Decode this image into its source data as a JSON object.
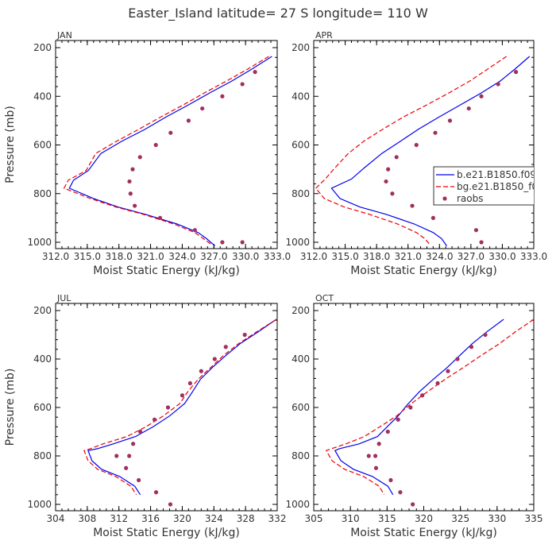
{
  "figure_title": "Easter_Island  latitude= 27 S longitude= 110 W",
  "colors": {
    "model1": "#0000ee",
    "model2": "#ee0000",
    "raobs": "#a03060"
  },
  "chart_data": [
    {
      "type": "line",
      "panel": "JAN",
      "xlabel": "Moist Static Energy (kJ/kg)",
      "ylabel": "Pressure (mb)",
      "xlim": [
        312.0,
        333.0
      ],
      "ylim": [
        1000,
        200
      ],
      "xticks": [
        312.0,
        315.0,
        318.0,
        321.0,
        324.0,
        327.0,
        330.0,
        333.0
      ],
      "xtick_labels": [
        "312.0",
        "315.0",
        "318.0",
        "321.0",
        "324.0",
        "327.0",
        "330.0",
        "333.0"
      ],
      "yticks": [
        200,
        400,
        600,
        800,
        1000
      ],
      "ytick_labels": [
        "200",
        "400",
        "600",
        "800",
        "1000"
      ],
      "series": [
        {
          "key": "model1",
          "style": "solid",
          "x": [
            332.5,
            330.6,
            328.7,
            326.6,
            324.6,
            322.5,
            320.5,
            318.3,
            316.3,
            315.1,
            313.7,
            313.3,
            315.6,
            317.9,
            320.5,
            323.5,
            325.5,
            326.3,
            327.1
          ],
          "y": [
            236,
            288,
            337,
            386,
            435,
            484,
            535,
            584,
            635,
            705,
            745,
            778,
            820,
            855,
            885,
            925,
            960,
            985,
            1015
          ]
        },
        {
          "key": "model2",
          "style": "dashed",
          "x": [
            332.2,
            330.2,
            328.2,
            326.1,
            324.1,
            322.0,
            319.9,
            317.8,
            315.8,
            314.9,
            313.2,
            312.8,
            315.3,
            317.7,
            320.3,
            323.2,
            325.2,
            326.0,
            326.8
          ],
          "y": [
            236,
            288,
            337,
            386,
            435,
            484,
            535,
            584,
            635,
            705,
            745,
            778,
            820,
            855,
            885,
            925,
            960,
            985,
            1010
          ]
        },
        {
          "key": "raobs",
          "style": "dots",
          "x": [
            330.9,
            329.7,
            327.8,
            325.9,
            324.6,
            322.9,
            321.5,
            320.0,
            319.3,
            319.0,
            319.1,
            319.5,
            321.9,
            325.2,
            327.8,
            329.7
          ],
          "y": [
            300,
            350,
            400,
            450,
            500,
            550,
            600,
            650,
            700,
            750,
            800,
            850,
            900,
            950,
            1000,
            1000
          ]
        }
      ],
      "legend": []
    },
    {
      "type": "line",
      "panel": "APR",
      "xlabel": "Moist Static Energy (kJ/kg)",
      "ylabel": "",
      "xlim": [
        312.0,
        333.0
      ],
      "ylim": [
        1000,
        200
      ],
      "xticks": [
        312.0,
        315.0,
        318.0,
        321.0,
        324.0,
        327.0,
        330.0,
        333.0
      ],
      "xtick_labels": [
        "312.0",
        "315.0",
        "318.0",
        "321.0",
        "324.0",
        "327.0",
        "330.0",
        "333.0"
      ],
      "yticks": [
        200,
        400,
        600,
        800,
        1000
      ],
      "ytick_labels": [
        "200",
        "400",
        "600",
        "800",
        "1000"
      ],
      "series": [
        {
          "key": "model1",
          "style": "solid",
          "x": [
            332.6,
            331.2,
            329.8,
            328.0,
            326.0,
            324.0,
            322.0,
            320.3,
            318.5,
            316.8,
            315.6,
            313.7,
            314.5,
            316.4,
            318.9,
            321.6,
            323.4,
            324.2,
            324.7
          ],
          "y": [
            236,
            288,
            337,
            386,
            435,
            484,
            535,
            584,
            635,
            695,
            740,
            778,
            820,
            855,
            885,
            925,
            960,
            985,
            1015
          ]
        },
        {
          "key": "model2",
          "style": "dashed",
          "x": [
            330.4,
            328.6,
            326.9,
            324.9,
            322.8,
            320.6,
            318.6,
            316.8,
            315.3,
            314.0,
            313.1,
            312.2,
            313.0,
            314.9,
            317.3,
            320.0,
            321.8,
            322.6,
            323.1
          ],
          "y": [
            236,
            288,
            337,
            386,
            435,
            484,
            535,
            584,
            635,
            695,
            740,
            778,
            820,
            855,
            885,
            925,
            960,
            985,
            1010
          ]
        },
        {
          "key": "raobs",
          "style": "dots",
          "x": [
            331.3,
            329.6,
            328.0,
            326.8,
            325.0,
            323.6,
            321.8,
            319.9,
            319.1,
            318.9,
            319.5,
            321.4,
            323.4,
            327.5,
            328.0
          ],
          "y": [
            300,
            350,
            400,
            450,
            500,
            550,
            600,
            650,
            700,
            750,
            800,
            850,
            900,
            950,
            1000
          ]
        }
      ],
      "legend": [
        {
          "key": "model1",
          "style": "solid",
          "label": "b.e21.B1850.f09"
        },
        {
          "key": "model2",
          "style": "dashed",
          "label": "bg.e21.B1850_f0"
        },
        {
          "key": "raobs",
          "style": "dots",
          "label": "raobs"
        }
      ]
    },
    {
      "type": "line",
      "panel": "JUL",
      "xlabel": "Moist Static Energy (kJ/kg)",
      "ylabel": "Pressure (mb)",
      "xlim": [
        304,
        332
      ],
      "ylim": [
        1000,
        200
      ],
      "xticks": [
        304,
        308,
        312,
        316,
        320,
        324,
        328,
        332
      ],
      "xtick_labels": [
        "304",
        "308",
        "312",
        "316",
        "320",
        "324",
        "328",
        "332"
      ],
      "yticks": [
        200,
        400,
        600,
        800,
        1000
      ],
      "ytick_labels": [
        "200",
        "400",
        "600",
        "800",
        "1000"
      ],
      "series": [
        {
          "key": "model1",
          "style": "solid",
          "x": [
            331.9,
            329.6,
            327.3,
            325.5,
            323.8,
            322.3,
            321.3,
            320.3,
            318.4,
            316.3,
            314.1,
            311.3,
            309.3,
            308.1,
            308.6,
            309.8,
            312.1,
            314.0,
            314.7
          ],
          "y": [
            236,
            288,
            337,
            386,
            435,
            484,
            535,
            584,
            635,
            680,
            720,
            750,
            770,
            778,
            820,
            855,
            885,
            925,
            960
          ]
        },
        {
          "key": "model2",
          "style": "dashed",
          "x": [
            331.9,
            329.4,
            327.1,
            325.2,
            323.6,
            322.0,
            320.7,
            319.7,
            317.6,
            315.4,
            313.0,
            310.0,
            308.4,
            307.6,
            308.1,
            309.3,
            311.6,
            313.5,
            314.2
          ],
          "y": [
            236,
            288,
            337,
            386,
            435,
            484,
            535,
            584,
            635,
            680,
            720,
            750,
            770,
            778,
            820,
            855,
            885,
            925,
            960
          ]
        },
        {
          "key": "raobs",
          "style": "dots",
          "x": [
            327.9,
            325.5,
            324.1,
            322.4,
            321.0,
            320.0,
            318.2,
            316.5,
            314.7,
            313.8,
            313.3,
            311.7,
            312.9,
            314.5,
            316.7,
            318.5
          ],
          "y": [
            300,
            350,
            400,
            450,
            500,
            550,
            600,
            650,
            700,
            750,
            800,
            800,
            850,
            900,
            950,
            1000
          ]
        }
      ],
      "legend": []
    },
    {
      "type": "line",
      "panel": "OCT",
      "xlabel": "Moist Static Energy (kJ/kg)",
      "ylabel": "",
      "xlim": [
        305,
        335
      ],
      "ylim": [
        1000,
        200
      ],
      "xticks": [
        305,
        310,
        315,
        320,
        325,
        330,
        335
      ],
      "xtick_labels": [
        "305",
        "310",
        "315",
        "320",
        "325",
        "330",
        "335"
      ],
      "yticks": [
        200,
        400,
        600,
        800,
        1000
      ],
      "ytick_labels": [
        "200",
        "400",
        "600",
        "800",
        "1000"
      ],
      "series": [
        {
          "key": "model1",
          "style": "solid",
          "x": [
            330.9,
            328.6,
            326.6,
            324.9,
            323.2,
            321.3,
            319.4,
            317.9,
            316.5,
            315.0,
            313.7,
            311.2,
            308.5,
            307.9,
            308.7,
            310.4,
            313.0,
            315.1,
            315.8
          ],
          "y": [
            236,
            288,
            337,
            386,
            435,
            484,
            535,
            584,
            635,
            680,
            720,
            750,
            770,
            778,
            820,
            855,
            885,
            925,
            960
          ]
        },
        {
          "key": "model2",
          "style": "dashed",
          "x": [
            335.0,
            332.5,
            330.3,
            327.8,
            325.4,
            322.9,
            320.5,
            318.3,
            316.3,
            314.0,
            311.9,
            309.4,
            307.4,
            306.7,
            307.5,
            309.2,
            311.8,
            313.9,
            314.6
          ],
          "y": [
            236,
            288,
            337,
            386,
            435,
            484,
            535,
            584,
            635,
            680,
            720,
            750,
            770,
            778,
            820,
            855,
            885,
            925,
            960
          ]
        },
        {
          "key": "raobs",
          "style": "dots",
          "x": [
            328.4,
            326.5,
            324.6,
            323.3,
            321.9,
            319.8,
            318.2,
            316.5,
            315.1,
            313.9,
            313.4,
            312.5,
            313.5,
            315.5,
            316.8,
            318.5
          ],
          "y": [
            300,
            350,
            400,
            450,
            500,
            550,
            600,
            650,
            700,
            750,
            800,
            800,
            850,
            900,
            950,
            1000
          ]
        }
      ],
      "legend": []
    }
  ]
}
